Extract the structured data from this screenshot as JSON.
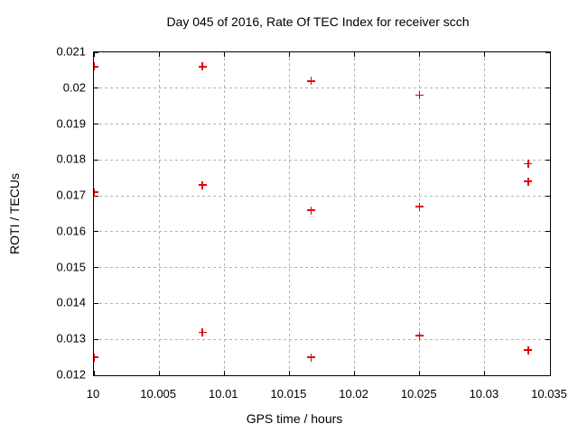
{
  "chart_data": {
    "type": "scatter",
    "title": "Day 045 of 2016, Rate Of TEC Index for receiver scch",
    "xlabel": "GPS time / hours",
    "ylabel": "ROTI / TECUs",
    "xlim": [
      10,
      10.035
    ],
    "ylim": [
      0.012,
      0.021
    ],
    "x_tick_values": [
      10,
      10.005,
      10.01,
      10.015,
      10.02,
      10.025,
      10.03,
      10.035
    ],
    "x_tick_labels": [
      "10",
      "10.005",
      "10.01",
      "10.015",
      "10.02",
      "10.025",
      "10.03",
      "10.035"
    ],
    "y_tick_values": [
      0.012,
      0.013,
      0.014,
      0.015,
      0.016,
      0.017,
      0.018,
      0.019,
      0.02,
      0.021
    ],
    "y_tick_labels": [
      "0.012",
      "0.013",
      "0.014",
      "0.015",
      "0.016",
      "0.017",
      "0.018",
      "0.019",
      "0.02",
      "0.021"
    ],
    "grid": true,
    "legend": "none",
    "marker": "plus",
    "marker_color": "#e60000",
    "grid_color": "#b3b3b3",
    "border_color": "#000000",
    "background_color": "#ffffff",
    "points": [
      [
        10.0,
        0.0206
      ],
      [
        10.0,
        0.0171
      ],
      [
        10.0,
        0.0125
      ],
      [
        10.008333,
        0.0206
      ],
      [
        10.008333,
        0.0173
      ],
      [
        10.008333,
        0.0132
      ],
      [
        10.016667,
        0.0202
      ],
      [
        10.016667,
        0.0166
      ],
      [
        10.016667,
        0.0125
      ],
      [
        10.025,
        0.0198
      ],
      [
        10.025,
        0.0167
      ],
      [
        10.025,
        0.0131
      ],
      [
        10.033333,
        0.0179
      ],
      [
        10.033333,
        0.0174
      ],
      [
        10.033333,
        0.0127
      ]
    ]
  }
}
